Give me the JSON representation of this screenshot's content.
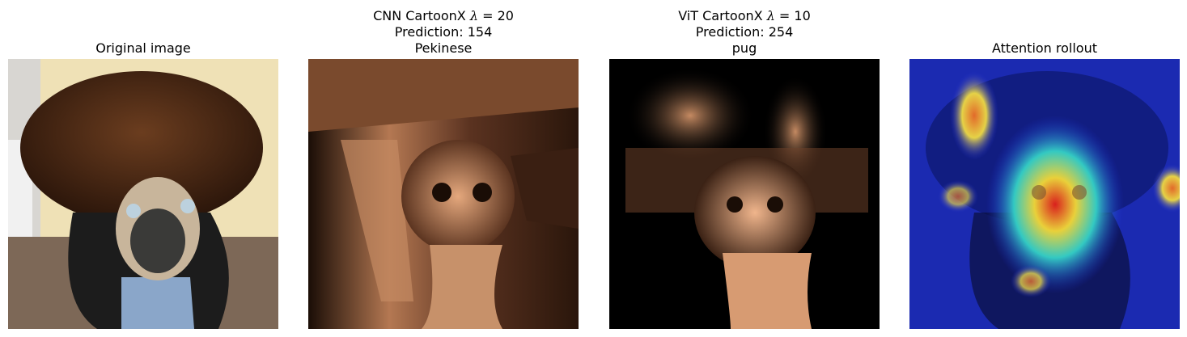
{
  "panels": [
    {
      "name": "original",
      "lines": [
        "Original image"
      ],
      "image_alt": "Pug wearing a brown shaggy wig and a dark jacket, sitting on carpet"
    },
    {
      "name": "cnn-cartoonx",
      "lines": [
        {
          "text": "CNN CartoonX ",
          "lambda": "λ",
          "eq": " = 20"
        },
        "Prediction: 154",
        "Pekinese"
      ],
      "image_alt": "CNN CartoonX explanation in copper colormap"
    },
    {
      "name": "vit-cartoonx",
      "lines": [
        {
          "text": "ViT CartoonX ",
          "lambda": "λ",
          "eq": " = 10"
        },
        "Prediction: 254",
        "pug"
      ],
      "image_alt": "ViT CartoonX explanation in copper colormap"
    },
    {
      "name": "attention-rollout",
      "lines": [
        "Attention rollout"
      ],
      "image_alt": "Attention rollout heatmap overlaid on the pug image"
    }
  ],
  "colors": {
    "copper_dark": "#000000",
    "copper_light": "#f2b48a",
    "jet_blue": "#1d2bd6",
    "jet_red": "#d9201d"
  }
}
